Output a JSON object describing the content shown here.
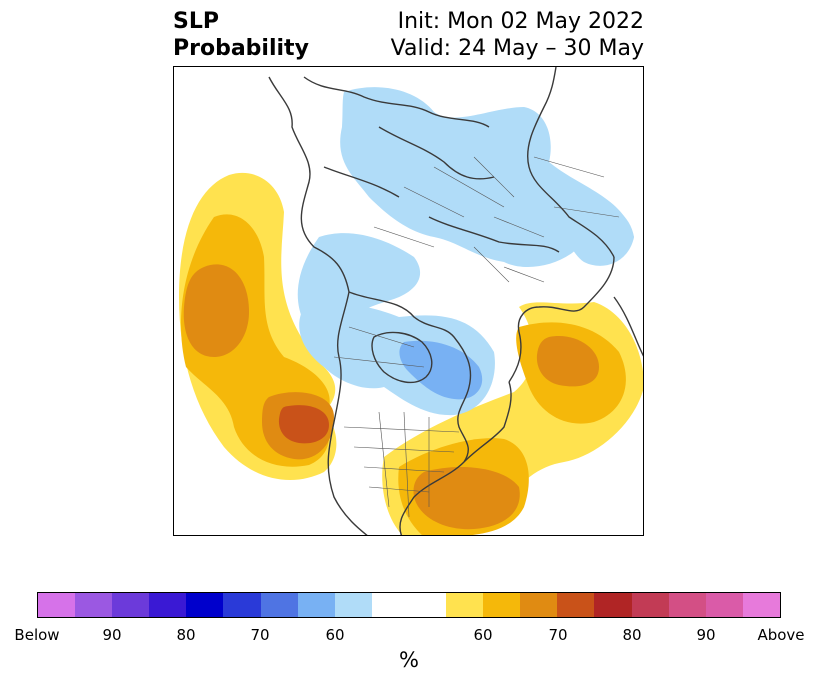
{
  "title": {
    "line1": "SLP",
    "line2": "Probability",
    "init": "Init: Mon 02 May 2022",
    "valid": "Valid: 24 May – 30 May"
  },
  "colorbar": {
    "colors": [
      "#d672e9",
      "#9b58e2",
      "#6c3ada",
      "#3a19d4",
      "#0000cc",
      "#2a3ad8",
      "#4f74e3",
      "#78b1f3",
      "#b0dcf8",
      "#ffffff",
      "#ffffff",
      "#ffe24f",
      "#f5b80a",
      "#e08b12",
      "#c95219",
      "#b02525",
      "#c23b55",
      "#d34f85",
      "#da5ba8",
      "#e77adb"
    ],
    "tick_labels": [
      "Below",
      "90",
      "80",
      "70",
      "60",
      "60",
      "70",
      "80",
      "90",
      "Above"
    ],
    "units": "%"
  },
  "map_colors": {
    "light_blue": "#b0dcf8",
    "mid_blue": "#78b1f3",
    "yellow": "#ffe24f",
    "gold": "#f5b80a",
    "orange": "#e08b12",
    "dark_orange": "#c95219",
    "coast": "#3a3a3a"
  }
}
